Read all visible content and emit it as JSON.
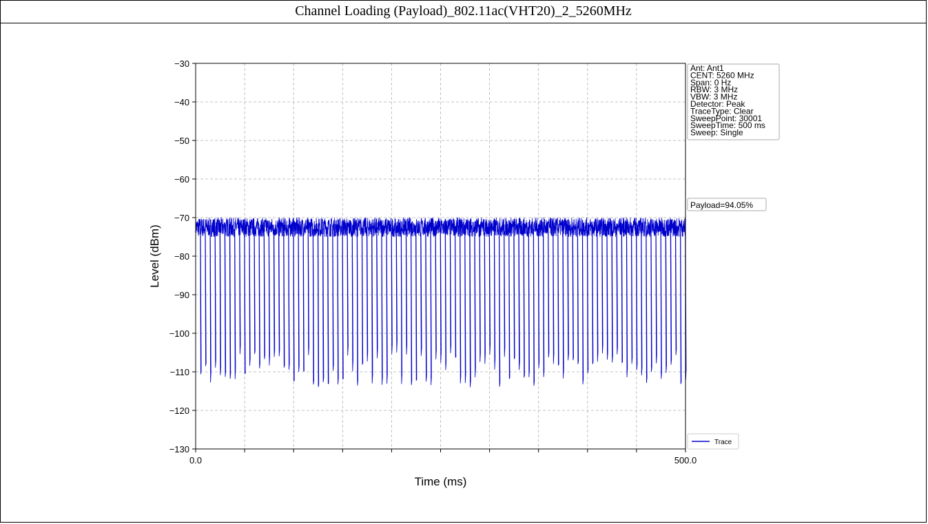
{
  "report": {
    "header_title": "Channel Loading (Payload)_802.11ac(VHT20)_2_5260MHz"
  },
  "chart_data": {
    "type": "line",
    "xlabel": "Time (ms)",
    "ylabel": "Level (dBm)",
    "xlim": [
      0,
      500
    ],
    "ylim": [
      -130,
      -30
    ],
    "x_tick_labels": [
      "0.0",
      "500.0"
    ],
    "y_ticks": [
      -30,
      -40,
      -50,
      -60,
      -70,
      -80,
      -90,
      -100,
      -110,
      -120,
      -130
    ],
    "y_tick_labels": [
      "−30",
      "−40",
      "−50",
      "−60",
      "−70",
      "−80",
      "−90",
      "−100",
      "−110",
      "−120",
      "−130"
    ],
    "grid": true,
    "series": [
      {
        "name": "Trace",
        "color": "#0000cc",
        "description_values": {
          "on_level_dbm_range": [
            -75,
            -70
          ],
          "off_level_dbm_range": [
            -114,
            -105
          ],
          "gap_count": 100
        }
      }
    ],
    "legend": {
      "position": "bottom-right",
      "label": "Trace"
    },
    "info_box": [
      "Ant: Ant1",
      "CENT: 5260 MHz",
      "Span: 0 Hz",
      "RBW: 3 MHz",
      "VBW: 3 MHz",
      "Detector: Peak",
      "TraceType: Clear",
      "SweepPoint: 30001",
      "SweepTime: 500 ms",
      "Sweep: Single"
    ],
    "payload_label": "Payload=94.05%"
  }
}
